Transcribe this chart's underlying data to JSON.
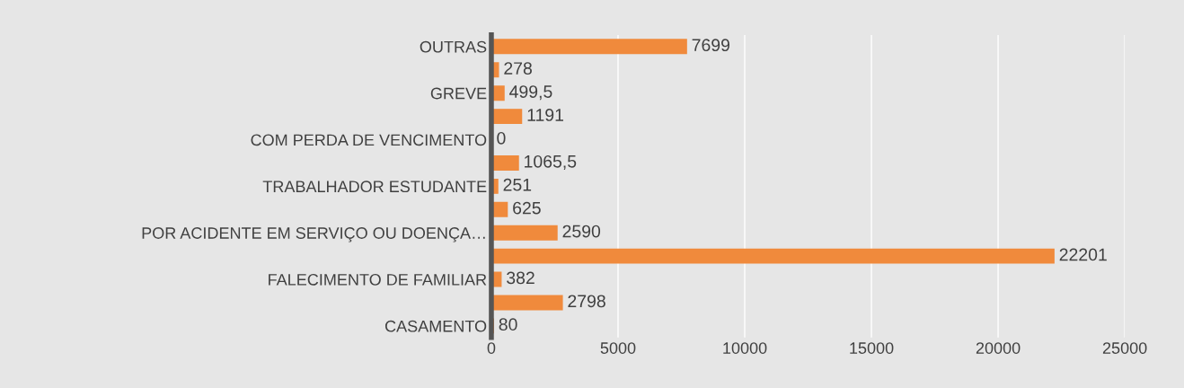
{
  "chart_data": {
    "type": "bar",
    "orientation": "horizontal",
    "categories": [
      "OUTRAS",
      null,
      "GREVE",
      null,
      "COM PERDA DE VENCIMENTO",
      null,
      "TRABALHADOR ESTUDANTE",
      null,
      "POR ACIDENTE EM SERVIÇO OU DOENÇA…",
      null,
      "FALECIMENTO DE FAMILIAR",
      null,
      "CASAMENTO"
    ],
    "values": [
      7699,
      278,
      499.5,
      1191,
      0,
      1065.5,
      251,
      625,
      2590,
      22201,
      382,
      2798,
      80
    ],
    "value_labels": [
      "7699",
      "278",
      "499,5",
      "1191",
      "0",
      "1065,5",
      "251",
      "625",
      "2590",
      "22201",
      "382",
      "2798",
      "80"
    ],
    "color": "#f08a3c",
    "xlim": [
      0,
      25000
    ],
    "xticks": [
      0,
      5000,
      10000,
      15000,
      20000,
      25000
    ],
    "grid": "x"
  }
}
